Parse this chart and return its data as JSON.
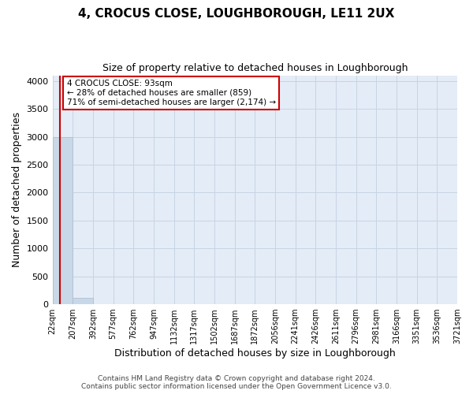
{
  "title": "4, CROCUS CLOSE, LOUGHBOROUGH, LE11 2UX",
  "subtitle": "Size of property relative to detached houses in Loughborough",
  "xlabel": "Distribution of detached houses by size in Loughborough",
  "ylabel": "Number of detached properties",
  "footnote1": "Contains HM Land Registry data © Crown copyright and database right 2024.",
  "footnote2": "Contains public sector information licensed under the Open Government Licence v3.0.",
  "bar_edges": [
    22,
    207,
    392,
    577,
    762,
    947,
    1132,
    1317,
    1502,
    1687,
    1872,
    2056,
    2241,
    2426,
    2611,
    2796,
    2981,
    3166,
    3351,
    3536,
    3721
  ],
  "bar_heights": [
    3000,
    110,
    0,
    0,
    0,
    0,
    0,
    0,
    0,
    0,
    0,
    0,
    0,
    0,
    0,
    0,
    0,
    0,
    0,
    0
  ],
  "bar_color": "#c8d8e8",
  "bar_edge_color": "#aabbcc",
  "ylim": [
    0,
    4100
  ],
  "yticks": [
    0,
    500,
    1000,
    1500,
    2000,
    2500,
    3000,
    3500,
    4000
  ],
  "grid_color": "#c8d4e4",
  "bg_color": "#e4ecf7",
  "annotation_line1": "4 CROCUS CLOSE: 93sqm",
  "annotation_line2": "← 28% of detached houses are smaller (859)",
  "annotation_line3": "71% of semi-detached houses are larger (2,174) →",
  "annotation_box_color": "#ffffff",
  "annotation_border_color": "#cc0000",
  "vline_color": "#cc0000",
  "vline_x": 93,
  "title_fontsize": 11,
  "subtitle_fontsize": 9,
  "ylabel_fontsize": 9,
  "xlabel_fontsize": 9,
  "ytick_fontsize": 8,
  "xtick_fontsize": 7,
  "footnote_fontsize": 6.5
}
